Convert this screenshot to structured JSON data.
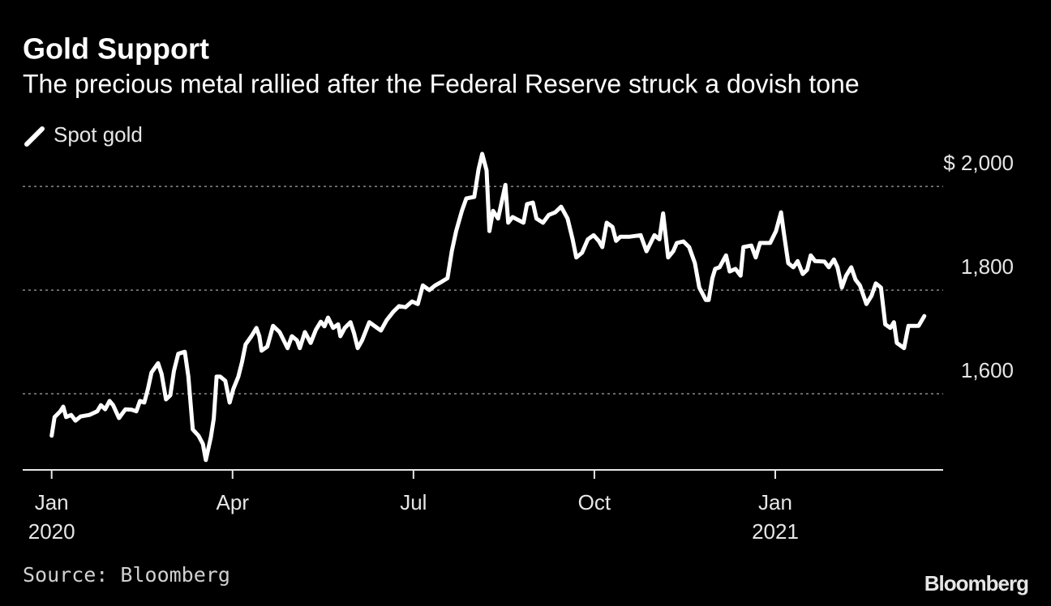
{
  "chart_data": {
    "type": "line",
    "title": "Gold Support",
    "subtitle": "The precious metal rallied after the Federal Reserve struck a dovish tone",
    "source": "Source: Bloomberg",
    "brand": "Bloomberg",
    "legend": "top-left",
    "grid": true,
    "series": [
      {
        "name": "Spot gold",
        "color": "#ffffff",
        "x": [
          2020.0,
          2020.004,
          2020.012,
          2020.016,
          2020.02,
          2020.027,
          2020.033,
          2020.04,
          2020.052,
          2020.063,
          2020.068,
          2020.074,
          2020.08,
          2020.085,
          2020.093,
          2020.102,
          2020.111,
          2020.117,
          2020.122,
          2020.128,
          2020.133,
          2020.138,
          2020.147,
          2020.152,
          2020.158,
          2020.164,
          2020.169,
          2020.175,
          2020.184,
          2020.189,
          2020.195,
          2020.203,
          2020.209,
          2020.213,
          2020.22,
          2020.224,
          2020.228,
          2020.233,
          2020.24,
          2020.246,
          2020.251,
          2020.258,
          2020.263,
          2020.268,
          2020.276,
          2020.283,
          2020.287,
          2020.29,
          2020.298,
          2020.306,
          2020.315,
          2020.326,
          2020.332,
          2020.339,
          2020.343,
          2020.35,
          2020.358,
          2020.365,
          2020.372,
          2020.377,
          2020.382,
          2020.389,
          2020.396,
          2020.399,
          2020.405,
          2020.413,
          2020.418,
          2020.423,
          2020.429,
          2020.439,
          2020.45,
          2020.455,
          2020.463,
          2020.472,
          2020.48,
          2020.489,
          2020.498,
          2020.506,
          2020.513,
          2020.522,
          2020.53,
          2020.539,
          2020.547,
          2020.553,
          2020.559,
          2020.567,
          2020.573,
          2020.584,
          2020.59,
          2020.595,
          2020.601,
          2020.605,
          2020.61,
          2020.617,
          2020.627,
          2020.631,
          2020.637,
          2020.652,
          2020.657,
          2020.665,
          2020.67,
          2020.679,
          2020.687,
          2020.696,
          2020.704,
          2020.713,
          2020.72,
          2020.725,
          2020.733,
          2020.741,
          2020.749,
          2020.756,
          2020.761,
          2020.767,
          2020.775,
          2020.78,
          2020.786,
          2020.799,
          2020.814,
          2020.822,
          2020.833,
          2020.84,
          2020.845,
          2020.852,
          2020.859,
          2020.864,
          2020.873,
          2020.881,
          2020.889,
          2020.895,
          2020.904,
          2020.908,
          2020.913,
          2020.917,
          2020.923,
          2020.932,
          2020.937,
          2020.945,
          2020.952,
          2020.956,
          2020.967,
          2020.973,
          2020.979,
          2020.993,
          2021.001,
          2021.008,
          2021.012,
          2021.018,
          2021.025,
          2021.031,
          2021.038,
          2021.044,
          2021.049,
          2021.055,
          2021.068,
          2021.074,
          2021.081,
          2021.086,
          2021.092,
          2021.098,
          2021.105,
          2021.111,
          2021.117,
          2021.126,
          2021.133,
          2021.139,
          2021.146,
          2021.152,
          2021.159,
          2021.164,
          2021.168,
          2021.178,
          2021.184,
          2021.198,
          2021.206
        ],
        "values": [
          1519,
          1555,
          1566,
          1575,
          1555,
          1559,
          1548,
          1556,
          1559,
          1566,
          1578,
          1570,
          1586,
          1578,
          1553,
          1570,
          1569,
          1566,
          1586,
          1583,
          1609,
          1641,
          1659,
          1638,
          1589,
          1597,
          1644,
          1677,
          1681,
          1633,
          1531,
          1519,
          1503,
          1472,
          1516,
          1552,
          1633,
          1633,
          1625,
          1583,
          1609,
          1633,
          1661,
          1695,
          1711,
          1727,
          1711,
          1683,
          1691,
          1731,
          1719,
          1688,
          1711,
          1703,
          1688,
          1719,
          1698,
          1723,
          1739,
          1730,
          1747,
          1727,
          1734,
          1711,
          1727,
          1738,
          1716,
          1688,
          1703,
          1738,
          1727,
          1722,
          1742,
          1758,
          1769,
          1767,
          1778,
          1773,
          1809,
          1800,
          1809,
          1816,
          1823,
          1875,
          1914,
          1953,
          1977,
          1980,
          2033,
          2063,
          2031,
          1914,
          1953,
          1938,
          2003,
          1930,
          1941,
          1930,
          1966,
          1969,
          1938,
          1930,
          1945,
          1950,
          1961,
          1938,
          1898,
          1863,
          1872,
          1898,
          1906,
          1895,
          1883,
          1930,
          1922,
          1895,
          1903,
          1903,
          1906,
          1875,
          1906,
          1898,
          1948,
          1863,
          1875,
          1891,
          1894,
          1883,
          1852,
          1805,
          1781,
          1781,
          1823,
          1841,
          1844,
          1867,
          1836,
          1841,
          1828,
          1883,
          1886,
          1863,
          1891,
          1891,
          1914,
          1950,
          1909,
          1852,
          1844,
          1856,
          1831,
          1839,
          1867,
          1856,
          1855,
          1844,
          1859,
          1844,
          1805,
          1828,
          1844,
          1820,
          1809,
          1773,
          1789,
          1813,
          1805,
          1734,
          1727,
          1738,
          1698,
          1688,
          1731,
          1731,
          1750
        ]
      }
    ],
    "xlim": [
      2019.96,
      2021.232
    ],
    "xticks": [
      {
        "value": 2020,
        "label": "Jan",
        "sublabel": "2020"
      },
      {
        "value": 2020.25,
        "label": "Apr"
      },
      {
        "value": 2020.5,
        "label": "Jul"
      },
      {
        "value": 2020.75,
        "label": "Oct"
      },
      {
        "value": 2021,
        "label": "Jan",
        "sublabel": "2021"
      }
    ],
    "ylim": [
      1453,
      2080
    ],
    "yticks": [
      {
        "value": 1600,
        "label": "1,600"
      },
      {
        "value": 1800,
        "label": "1,800"
      },
      {
        "value": 2000,
        "label": "$ 2,000"
      }
    ]
  }
}
